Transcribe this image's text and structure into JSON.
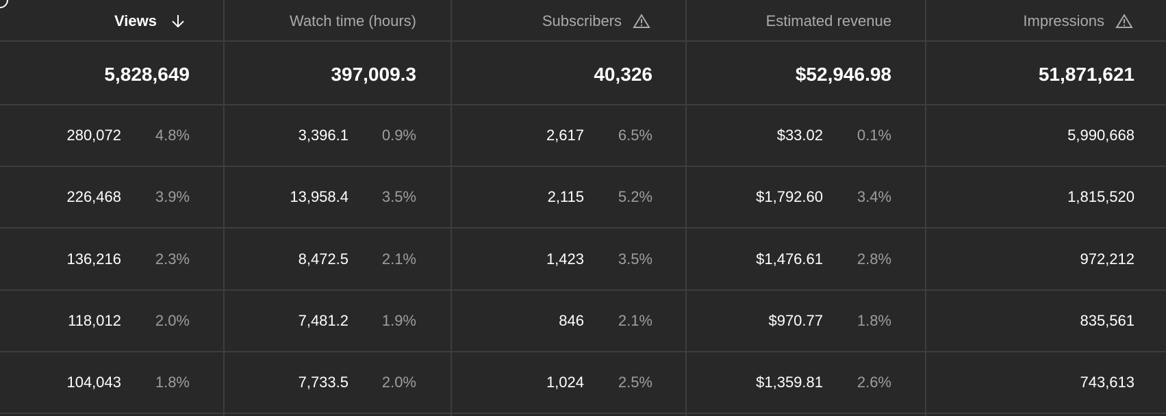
{
  "table": {
    "columns": [
      {
        "header": "Views",
        "total": "5,828,649",
        "values": [
          "280,072",
          "226,468",
          "136,216",
          "118,012",
          "104,043"
        ],
        "shares": [
          "4.8%",
          "3.9%",
          "2.3%",
          "2.0%",
          "1.8%"
        ]
      },
      {
        "header": "Watch time (hours)",
        "total": "397,009.3",
        "values": [
          "3,396.1",
          "13,958.4",
          "8,472.5",
          "7,481.2",
          "7,733.5"
        ],
        "shares": [
          "0.9%",
          "3.5%",
          "2.1%",
          "1.9%",
          "2.0%"
        ]
      },
      {
        "header": "Subscribers",
        "total": "40,326",
        "values": [
          "2,617",
          "2,115",
          "1,423",
          "846",
          "1,024"
        ],
        "shares": [
          "6.5%",
          "5.2%",
          "3.5%",
          "2.1%",
          "2.5%"
        ]
      },
      {
        "header": "Estimated revenue",
        "total": "$52,946.98",
        "values": [
          "$33.02",
          "$1,792.60",
          "$1,476.61",
          "$970.77",
          "$1,359.81"
        ],
        "shares": [
          "0.1%",
          "3.4%",
          "2.8%",
          "1.8%",
          "2.6%"
        ]
      },
      {
        "header": "Impressions",
        "total": "51,871,621",
        "values": [
          "5,990,668",
          "1,815,520",
          "972,212",
          "835,561",
          "743,613"
        ]
      }
    ]
  }
}
